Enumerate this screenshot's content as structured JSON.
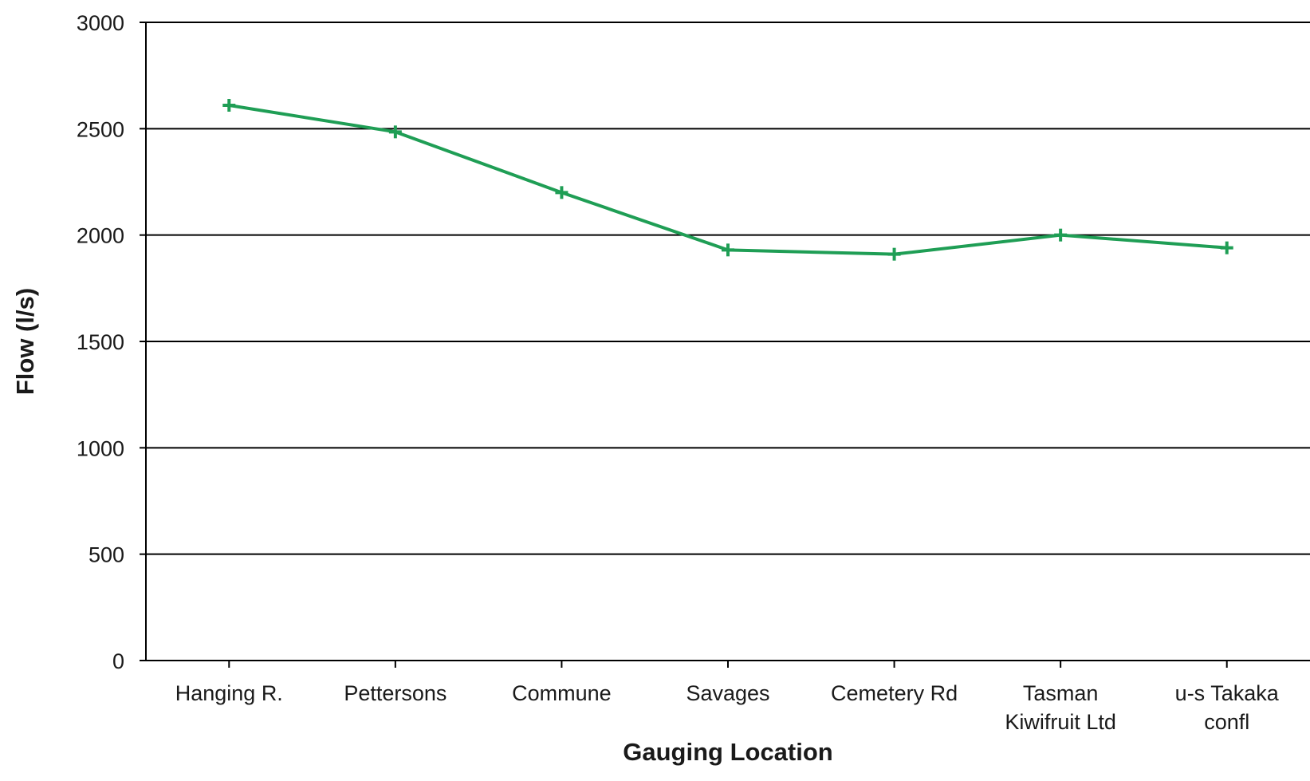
{
  "chart_data": {
    "type": "line",
    "title": "",
    "xlabel": "Gauging Location",
    "ylabel": "Flow (l/s)",
    "categories": [
      [
        "Hanging R."
      ],
      [
        "Pettersons"
      ],
      [
        "Commune"
      ],
      [
        "Savages"
      ],
      [
        "Cemetery Rd"
      ],
      [
        "Tasman",
        "Kiwifruit Ltd"
      ],
      [
        "u-s Takaka",
        "confl"
      ]
    ],
    "series": [
      {
        "values": [
          2610,
          2485,
          2200,
          1930,
          1910,
          2000,
          1940
        ],
        "color": "#1f9e55",
        "marker": "plus"
      }
    ],
    "ylim": [
      0,
      3000
    ],
    "yticks": [
      0,
      500,
      1000,
      1500,
      2000,
      2500,
      3000
    ],
    "grid": true,
    "legend": "none"
  }
}
